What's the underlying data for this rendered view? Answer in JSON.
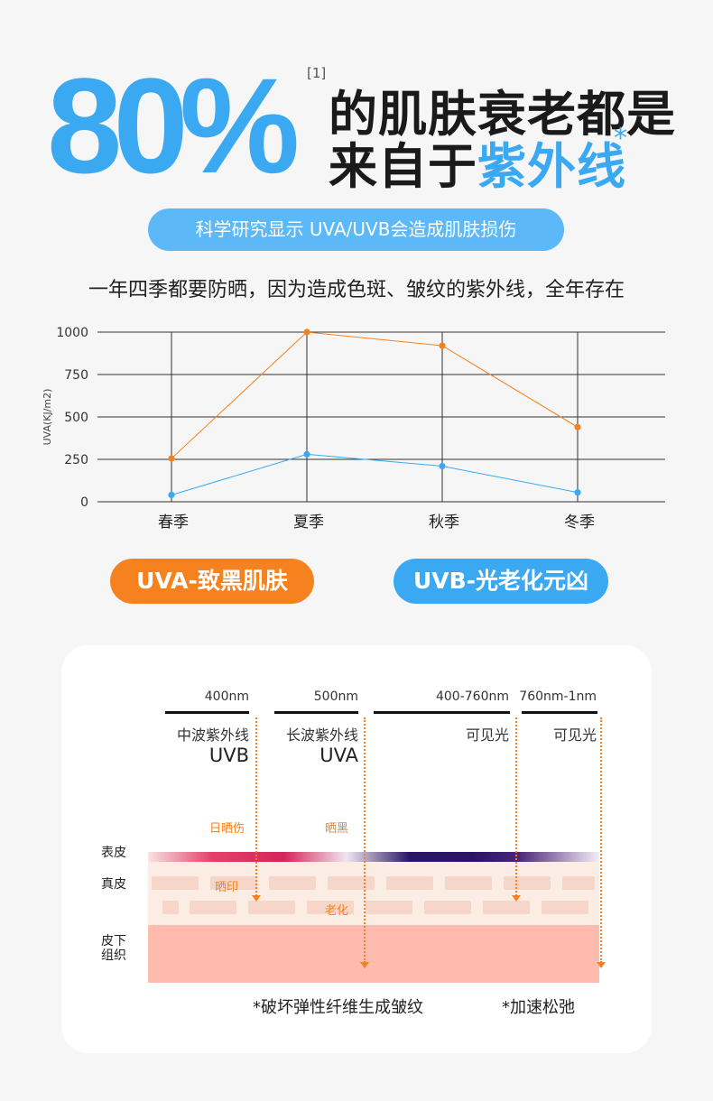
{
  "hero": {
    "percent": "80%",
    "ref": "[1]",
    "line1": "的肌肤衰老都是",
    "line2_prefix": "来自于",
    "line2_accent": "紫外线",
    "star": "*"
  },
  "research_pill": "科学研究显示 UVA/UVB会造成肌肤损伤",
  "subtitle": "一年四季都要防晒，因为造成色斑、皱纹的紫外线，全年存在",
  "chart_data": {
    "type": "line",
    "categories": [
      "春季",
      "夏季",
      "秋季",
      "冬季"
    ],
    "ylabel": "UVA(KJ/m2)",
    "xlabel": "",
    "title": "",
    "ylim": [
      0,
      1000
    ],
    "yticks": [
      0,
      250,
      500,
      750,
      1000
    ],
    "grid": true,
    "series": [
      {
        "values": [
          255,
          1000,
          920,
          440
        ],
        "color": "#f5821f"
      },
      {
        "values": [
          40,
          280,
          210,
          55
        ],
        "color": "#3aa9f2"
      }
    ]
  },
  "pills": {
    "uva": "UVA-致黑肌肤",
    "uvb": "UVB-光老化元凶"
  },
  "diagram": {
    "bands": [
      {
        "wavelength": "400nm",
        "name": "中波紫外线",
        "code": "UVB"
      },
      {
        "wavelength": "500nm",
        "name": "长波紫外线",
        "code": "UVA"
      },
      {
        "wavelength": "400-760nm",
        "name": "可见光",
        "code": ""
      },
      {
        "wavelength": "760nm-1nm",
        "name": "可见光",
        "code": ""
      }
    ],
    "effects": {
      "sunburn": "日晒伤",
      "tan": "晒黑",
      "sunmark": "晒印",
      "aging": "老化"
    },
    "layers": {
      "epidermis": "表皮",
      "dermis": "真皮",
      "subcutaneous_1": "皮下",
      "subcutaneous_2": "组织"
    },
    "footnotes": {
      "left": "*破坏弹性纤维生成皱纹",
      "right": "*加速松弛"
    },
    "colors": {
      "arrow": "#f5821f",
      "subcutaneous": "#ffbbad"
    }
  }
}
